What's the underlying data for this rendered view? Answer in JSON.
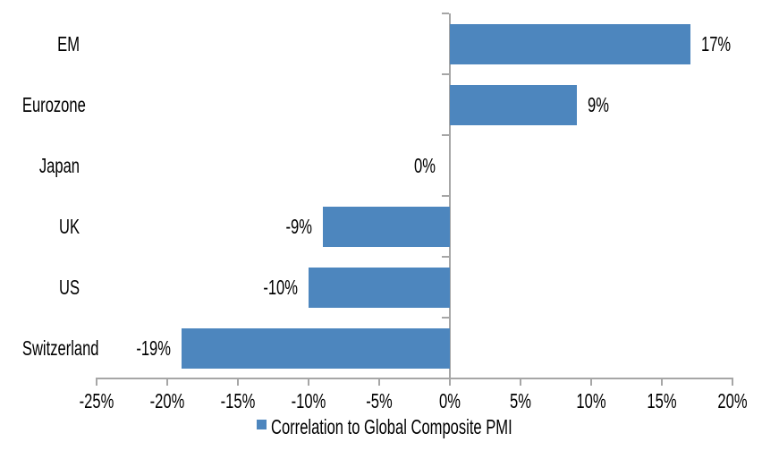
{
  "chart_data": {
    "type": "bar",
    "orientation": "horizontal",
    "categories": [
      "EM",
      "Eurozone",
      "Japan",
      "UK",
      "US",
      "Switzerland"
    ],
    "values": [
      17,
      9,
      0,
      -9,
      -10,
      -19
    ],
    "value_labels": [
      "17%",
      "9%",
      "0%",
      "-9%",
      "-10%",
      "-19%"
    ],
    "x_ticks": [
      -25,
      -20,
      -15,
      -10,
      -5,
      0,
      5,
      10,
      15,
      20
    ],
    "x_tick_labels": [
      "-25%",
      "-20%",
      "-15%",
      "-10%",
      "-5%",
      "0%",
      "5%",
      "10%",
      "15%",
      "20%"
    ],
    "xlim": [
      -25,
      20
    ],
    "legend": {
      "label": "Correlation to Global Composite PMI",
      "position": "bottom-center"
    },
    "colors": {
      "bar": "#4D86BE",
      "axis": "#A6A6A6",
      "text": "#000000",
      "background": "#FFFFFF"
    },
    "grid": false
  }
}
